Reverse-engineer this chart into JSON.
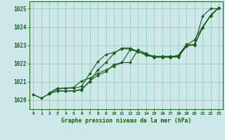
{
  "title": "Graphe pression niveau de la mer (hPa)",
  "bg_color": "#cce8e8",
  "grid_color": "#99ccbb",
  "line_color": "#1a5c1a",
  "xlim": [
    -0.5,
    23.5
  ],
  "ylim": [
    1019.5,
    1025.4
  ],
  "yticks": [
    1020,
    1021,
    1022,
    1023,
    1024,
    1025
  ],
  "xticks": [
    0,
    1,
    2,
    3,
    4,
    5,
    6,
    7,
    8,
    9,
    10,
    11,
    12,
    13,
    14,
    15,
    16,
    17,
    18,
    19,
    20,
    21,
    22,
    23
  ],
  "series": [
    {
      "x": [
        0,
        1,
        2,
        3,
        4,
        5,
        6,
        7,
        8,
        9,
        10,
        11,
        12,
        13,
        14,
        15,
        16,
        17,
        18,
        19,
        20,
        21,
        22,
        23
      ],
      "y": [
        1020.3,
        1020.1,
        1020.35,
        1020.5,
        1020.5,
        1020.5,
        1020.55,
        1021.05,
        1021.35,
        1021.55,
        1021.95,
        1022.05,
        1022.05,
        1022.75,
        1022.55,
        1022.35,
        1022.35,
        1022.35,
        1022.45,
        1022.95,
        1023.05,
        1024.6,
        1025.0,
        1025.0
      ]
    },
    {
      "x": [
        0,
        1,
        2,
        3,
        4,
        5,
        6,
        7,
        8,
        9,
        10,
        11,
        12,
        13,
        14,
        15,
        16,
        17,
        18,
        19,
        20,
        21,
        22,
        23
      ],
      "y": [
        1020.3,
        1020.1,
        1020.35,
        1020.5,
        1020.5,
        1020.5,
        1020.6,
        1021.0,
        1021.65,
        1022.05,
        1022.55,
        1022.85,
        1022.85,
        1022.65,
        1022.5,
        1022.35,
        1022.35,
        1022.35,
        1022.45,
        1023.05,
        1023.0,
        1024.0,
        1024.65,
        1025.05
      ]
    },
    {
      "x": [
        2,
        3,
        4,
        5,
        6,
        7,
        8,
        9,
        10,
        11,
        12,
        13,
        14,
        15,
        16,
        17,
        18,
        19,
        20,
        21,
        22,
        23
      ],
      "y": [
        1020.4,
        1020.6,
        1020.65,
        1020.65,
        1020.75,
        1021.45,
        1022.1,
        1022.5,
        1022.6,
        1022.8,
        1022.8,
        1022.65,
        1022.5,
        1022.4,
        1022.4,
        1022.4,
        1022.4,
        1023.0,
        1023.3,
        1024.0,
        1024.6,
        1025.05
      ]
    },
    {
      "x": [
        2,
        3,
        4,
        5,
        6,
        7,
        8,
        9,
        10,
        11,
        12,
        13,
        14,
        15,
        16,
        17,
        18,
        19,
        20,
        21,
        22,
        23
      ],
      "y": [
        1020.4,
        1020.65,
        1020.65,
        1020.7,
        1021.05,
        1021.2,
        1021.45,
        1021.65,
        1021.85,
        1022.05,
        1022.75,
        1022.65,
        1022.45,
        1022.35,
        1022.35,
        1022.35,
        1022.35,
        1022.95,
        1023.05,
        1023.95,
        1024.65,
        1025.05
      ]
    }
  ]
}
